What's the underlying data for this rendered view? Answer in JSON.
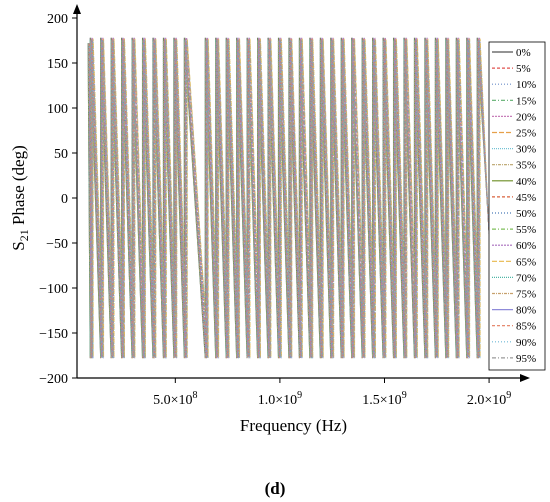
{
  "chart_data": {
    "type": "line",
    "title": "",
    "xlabel": "Frequency (Hz)",
    "ylabel_main": "S",
    "ylabel_sub": "21",
    "ylabel_rest": " Phase (deg)",
    "xlim": [
      30000000,
      2100000000
    ],
    "ylim": [
      -200,
      200
    ],
    "y_ticks": [
      200,
      150,
      100,
      50,
      0,
      -50,
      -100,
      -150,
      -200
    ],
    "y_tick_labels": [
      "200",
      "150",
      "100",
      "50",
      "0",
      "−50",
      "−100",
      "−150",
      "−200"
    ],
    "x_ticks": [
      500000000,
      1000000000,
      1500000000,
      2000000000
    ],
    "x_tick_labels": [
      {
        "base": "5.0×10",
        "exp": "8"
      },
      {
        "base": "1.0×10",
        "exp": "9"
      },
      {
        "base": "1.5×10",
        "exp": "9"
      },
      {
        "base": "2.0×10",
        "exp": "9"
      }
    ],
    "grid": false,
    "legend_position": "right",
    "phase_wrap_frequencies_hz": [
      100000000,
      150000000,
      200000000,
      250000000,
      300000000,
      350000000,
      400000000,
      450000000,
      500000000,
      550000000,
      650000000,
      700000000,
      750000000,
      800000000,
      850000000,
      900000000,
      950000000,
      1000000000,
      1050000000,
      1100000000,
      1150000000,
      1200000000,
      1250000000,
      1300000000,
      1350000000,
      1400000000,
      1450000000,
      1500000000,
      1550000000,
      1600000000,
      1650000000,
      1700000000,
      1750000000,
      1800000000,
      1850000000,
      1900000000,
      1950000000
    ],
    "phase_range_deg": [
      -178,
      178
    ],
    "series": [
      {
        "name": "0%",
        "color": "#555555"
      },
      {
        "name": "5%",
        "color": "#e0524f"
      },
      {
        "name": "10%",
        "color": "#6c8ec9"
      },
      {
        "name": "15%",
        "color": "#5fae6e"
      },
      {
        "name": "20%",
        "color": "#c87fb9"
      },
      {
        "name": "25%",
        "color": "#e6a04a"
      },
      {
        "name": "30%",
        "color": "#74c2d4"
      },
      {
        "name": "35%",
        "color": "#b9a36a"
      },
      {
        "name": "40%",
        "color": "#6b8e23"
      },
      {
        "name": "45%",
        "color": "#d9603b"
      },
      {
        "name": "50%",
        "color": "#4b7bb8"
      },
      {
        "name": "55%",
        "color": "#7fbf5a"
      },
      {
        "name": "60%",
        "color": "#a86fbd"
      },
      {
        "name": "65%",
        "color": "#e8b84a"
      },
      {
        "name": "70%",
        "color": "#4fb6a6"
      },
      {
        "name": "75%",
        "color": "#c7a16d"
      },
      {
        "name": "80%",
        "color": "#8f8bd9"
      },
      {
        "name": "85%",
        "color": "#e27b5d"
      },
      {
        "name": "90%",
        "color": "#6fb8d6"
      },
      {
        "name": "95%",
        "color": "#9a9a9a"
      }
    ]
  },
  "caption": "(d)"
}
